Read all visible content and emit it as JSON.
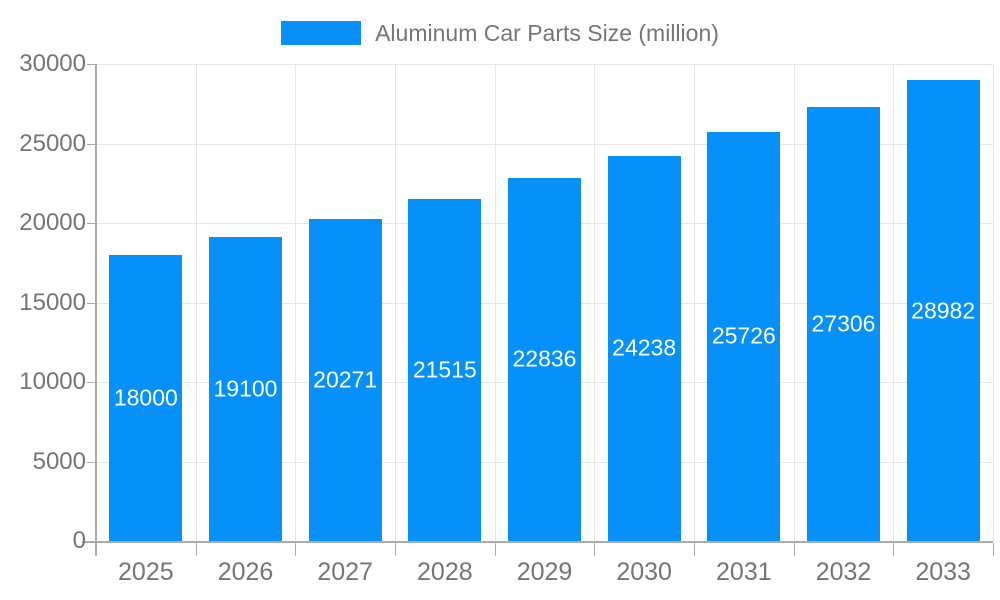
{
  "chart_data": {
    "type": "bar",
    "title": "",
    "legend": {
      "label": "Aluminum Car Parts Size (million)",
      "position": "top-center"
    },
    "categories": [
      "2025",
      "2026",
      "2027",
      "2028",
      "2029",
      "2030",
      "2031",
      "2032",
      "2033"
    ],
    "values": [
      18000,
      19100,
      20271,
      21515,
      22836,
      24238,
      25726,
      27306,
      28982
    ],
    "xlabel": "",
    "ylabel": "",
    "ylim": [
      0,
      30000
    ],
    "y_ticks": [
      0,
      5000,
      10000,
      15000,
      20000,
      25000,
      30000
    ],
    "grid": true,
    "colors": {
      "bar": "#0590FA",
      "value_label": "#FFFFFF",
      "axis_text": "#757575",
      "grid_line": "#E6E6E6",
      "axis_line": "#ABABAB",
      "background": "#FFFFFF"
    }
  }
}
